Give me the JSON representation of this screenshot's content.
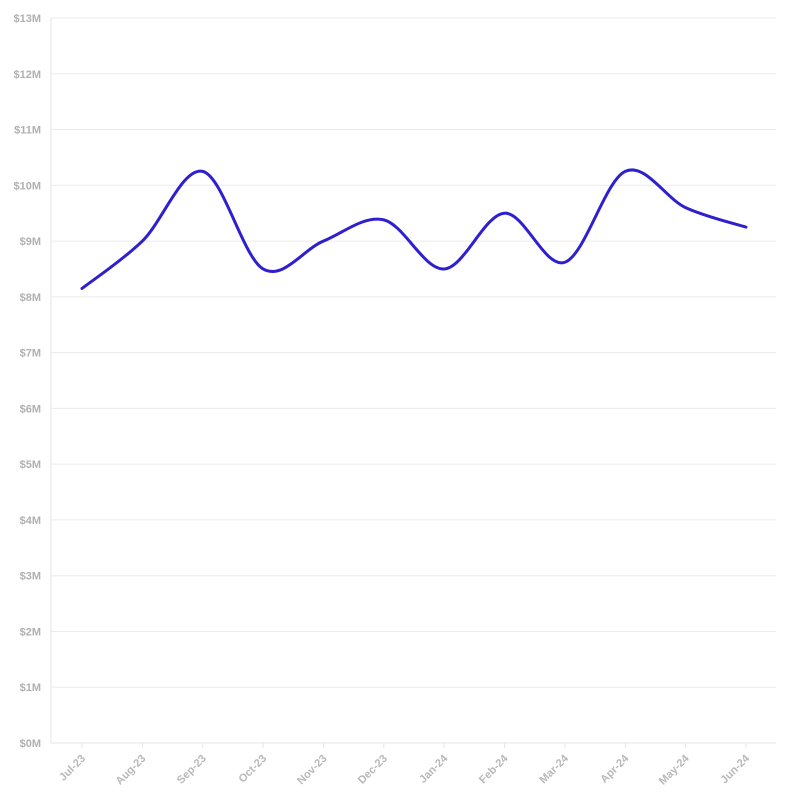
{
  "chart_data": {
    "type": "line",
    "title": "",
    "xlabel": "",
    "ylabel": "",
    "categories": [
      "Jul-23",
      "Aug-23",
      "Sep-23",
      "Oct-23",
      "Nov-23",
      "Dec-23",
      "Jan-24",
      "Feb-24",
      "Mar-24",
      "Apr-24",
      "May-24",
      "Jun-24"
    ],
    "y_tick_labels": [
      "$0M",
      "$1M",
      "$2M",
      "$3M",
      "$4M",
      "$5M",
      "$6M",
      "$7M",
      "$8M",
      "$9M",
      "$10M",
      "$11M",
      "$12M",
      "$13M"
    ],
    "y_tick_values": [
      0,
      1,
      2,
      3,
      4,
      5,
      6,
      7,
      8,
      9,
      10,
      11,
      12,
      13
    ],
    "ylim": [
      0,
      13
    ],
    "y_unit": "$M",
    "grid": true,
    "legend": "none",
    "series": [
      {
        "values": [
          8.15,
          9.0,
          10.25,
          8.5,
          9.0,
          9.38,
          8.5,
          9.5,
          8.62,
          10.25,
          9.6,
          9.25
        ],
        "color": "#2e1fcf"
      }
    ]
  }
}
